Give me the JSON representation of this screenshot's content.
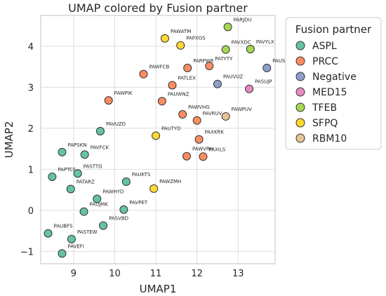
{
  "chart_data": {
    "type": "scatter",
    "title": "UMAP colored by Fusion partner",
    "xlabel": "UMAP1",
    "ylabel": "UMAP2",
    "xlim": [
      8.2,
      13.9
    ],
    "ylim": [
      -1.3,
      4.75
    ],
    "xticks": [
      9,
      10,
      11,
      12,
      13
    ],
    "yticks": [
      -1,
      0,
      1,
      2,
      3,
      4
    ],
    "yticklabels": [
      "−1",
      "0",
      "1",
      "2",
      "3",
      "4"
    ],
    "grid": true,
    "legend": {
      "title": "Fusion partner",
      "position": "outside-right"
    },
    "series": [
      {
        "name": "ASPL",
        "color": "#66c2a5",
        "points": [
          {
            "label": "PAVUZD",
            "x": 9.65,
            "y": 1.93
          },
          {
            "label": "PAPSKN",
            "x": 8.72,
            "y": 1.42
          },
          {
            "label": "PAVFCK",
            "x": 9.27,
            "y": 1.36
          },
          {
            "label": "PAPTCF",
            "x": 8.48,
            "y": 0.82
          },
          {
            "label": "PASTTG",
            "x": 9.1,
            "y": 0.9
          },
          {
            "label": "PATARZ",
            "x": 8.93,
            "y": 0.52
          },
          {
            "label": "PAUKTS",
            "x": 10.28,
            "y": 0.7
          },
          {
            "label": "PAWHYD",
            "x": 9.57,
            "y": 0.28
          },
          {
            "label": "PAUJMK",
            "x": 9.25,
            "y": -0.03
          },
          {
            "label": "PAVPET",
            "x": 10.22,
            "y": 0.02
          },
          {
            "label": "PAUBFS",
            "x": 8.38,
            "y": -0.56
          },
          {
            "label": "PASVBD",
            "x": 9.72,
            "y": -0.37
          },
          {
            "label": "PASTEW",
            "x": 8.95,
            "y": -0.7
          },
          {
            "label": "PAVEFI",
            "x": 8.72,
            "y": -1.05
          }
        ]
      },
      {
        "name": "PRCC",
        "color": "#fc8d62",
        "points": [
          {
            "label": "PAWFCB",
            "x": 10.7,
            "y": 3.32
          },
          {
            "label": "PARPWR",
            "x": 11.77,
            "y": 3.47
          },
          {
            "label": "PATYTY",
            "x": 12.3,
            "y": 3.52
          },
          {
            "label": "PATLEX",
            "x": 11.4,
            "y": 3.05
          },
          {
            "label": "PAWPIK",
            "x": 9.85,
            "y": 2.68
          },
          {
            "label": "PAUWNZ",
            "x": 11.15,
            "y": 2.66
          },
          {
            "label": "PAWVHG",
            "x": 11.65,
            "y": 2.34
          },
          {
            "label": "PAVRUV",
            "x": 12.0,
            "y": 2.19
          },
          {
            "label": "PAXKRK",
            "x": 12.05,
            "y": 1.73
          },
          {
            "label": "PAWVRH",
            "x": 11.75,
            "y": 1.32
          },
          {
            "label": "PAXILS",
            "x": 12.15,
            "y": 1.31
          }
        ]
      },
      {
        "name": "Negative",
        "color": "#8da0cb",
        "points": [
          {
            "label": "PAUSXY",
            "x": 13.7,
            "y": 3.47
          },
          {
            "label": "PAUVUZ",
            "x": 12.5,
            "y": 3.08
          }
        ]
      },
      {
        "name": "MED15",
        "color": "#e78ac3",
        "points": [
          {
            "label": "PASUJP",
            "x": 13.27,
            "y": 2.96
          }
        ]
      },
      {
        "name": "TFEB",
        "color": "#a6d854",
        "points": [
          {
            "label": "PARJDU",
            "x": 12.75,
            "y": 4.47
          },
          {
            "label": "PAVXDC",
            "x": 12.7,
            "y": 3.92
          },
          {
            "label": "PAVYLX",
            "x": 13.3,
            "y": 3.93
          }
        ]
      },
      {
        "name": "SFPQ",
        "color": "#ffd92f",
        "points": [
          {
            "label": "PAWATM",
            "x": 11.22,
            "y": 4.19
          },
          {
            "label": "PAPXGS",
            "x": 11.6,
            "y": 4.02
          },
          {
            "label": "PAUTYD",
            "x": 11.0,
            "y": 1.82
          },
          {
            "label": "PAWZMH",
            "x": 10.95,
            "y": 0.53
          }
        ]
      },
      {
        "name": "RBM10",
        "color": "#e5c494",
        "points": [
          {
            "label": "PAWPUV",
            "x": 12.7,
            "y": 2.29
          }
        ]
      }
    ]
  }
}
